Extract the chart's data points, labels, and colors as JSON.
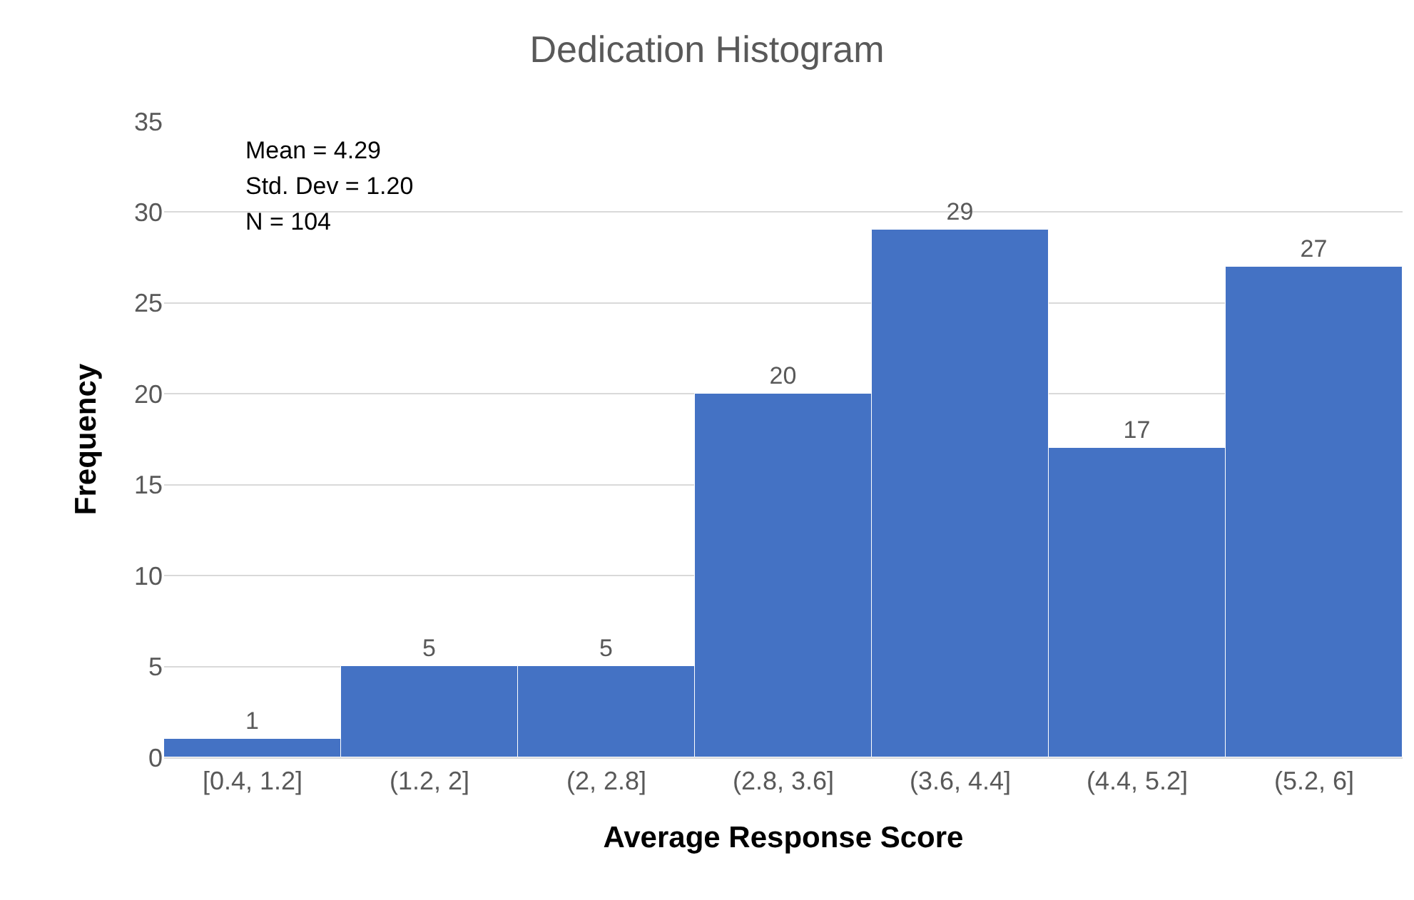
{
  "chart_data": {
    "type": "bar",
    "title": "Dedication Histogram",
    "xlabel": "Average Response Score",
    "ylabel": "Frequency",
    "categories": [
      "[0.4, 1.2]",
      "(1.2, 2]",
      "(2, 2.8]",
      "(2.8, 3.6]",
      "(3.6, 4.4]",
      "(4.4, 5.2]",
      "(5.2, 6]"
    ],
    "values": [
      1,
      5,
      5,
      20,
      29,
      17,
      27
    ],
    "color": "#4472c4",
    "ylim": [
      0,
      35
    ],
    "yticks": [
      0,
      5,
      10,
      15,
      20,
      25,
      30,
      35
    ],
    "grid": "y",
    "data_labels": true,
    "annotations": [
      "Mean = 4.29",
      "Std. Dev = 1.20",
      "N = 104"
    ]
  }
}
